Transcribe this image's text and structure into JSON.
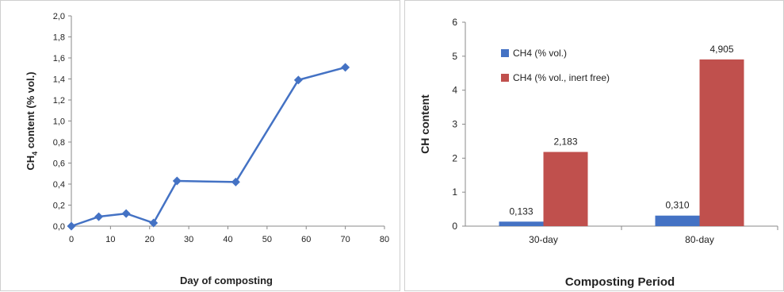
{
  "chart_data": [
    {
      "type": "line",
      "title": "",
      "xlabel": "Day of composting",
      "ylabel_main": "CH",
      "ylabel_sub": "4",
      "ylabel_rest": " content (% vol.)",
      "xlim": [
        0,
        80
      ],
      "ylim": [
        0,
        2.0
      ],
      "x_ticks": [
        0,
        10,
        20,
        30,
        40,
        50,
        60,
        70,
        80
      ],
      "y_ticks": [
        0,
        0.2,
        0.4,
        0.6,
        0.8,
        1.0,
        1.2,
        1.4,
        1.6,
        1.8,
        2.0
      ],
      "y_tick_labels": [
        "0,0",
        "0,2",
        "0,4",
        "0,6",
        "0,8",
        "1,0",
        "1,2",
        "1,4",
        "1,6",
        "1,8",
        "2,0"
      ],
      "grid": false,
      "line_color": "#4472C4",
      "series": [
        {
          "x": [
            0,
            7,
            14,
            21,
            27,
            42,
            58,
            70
          ],
          "y": [
            0.0,
            0.09,
            0.12,
            0.03,
            0.43,
            0.42,
            1.39,
            1.51
          ]
        }
      ]
    },
    {
      "type": "bar",
      "title": "",
      "xlabel": "Composting Period",
      "ylabel": "CH content",
      "ylim": [
        0,
        6
      ],
      "y_ticks": [
        0,
        1,
        2,
        3,
        4,
        5,
        6
      ],
      "categories": [
        "30-day",
        "80-day"
      ],
      "legend_position": "top-left",
      "grid": false,
      "series": [
        {
          "name": "CH4 (% vol.)",
          "color": "#4472C4",
          "values": [
            0.133,
            0.31
          ],
          "labels": [
            "0,133",
            "0,310"
          ]
        },
        {
          "name": "CH4 (% vol., inert free)",
          "color": "#C0504D",
          "values": [
            2.183,
            4.905
          ],
          "labels": [
            "2,183",
            "4,905"
          ]
        }
      ]
    }
  ]
}
